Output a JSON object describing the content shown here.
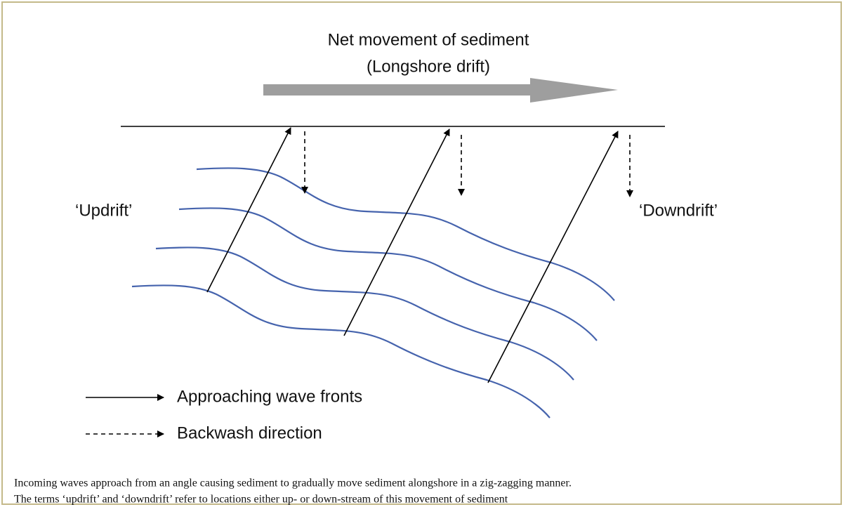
{
  "title": {
    "line1": "Net movement of sediment",
    "line2": "(Longshore drift)"
  },
  "labels": {
    "updrift": "‘Updrift’",
    "downdrift": "‘Downdrift’"
  },
  "legend": {
    "solid": "Approaching wave fronts",
    "dashed": "Backwash direction"
  },
  "caption": {
    "line1": "Incoming waves approach from an angle causing sediment to gradually move sediment alongshore in a zig-zagging manner.",
    "line2": "The terms ‘updrift’ and ‘downdrift’ refer to locations either up- or down-stream of this movement of sediment"
  }
}
